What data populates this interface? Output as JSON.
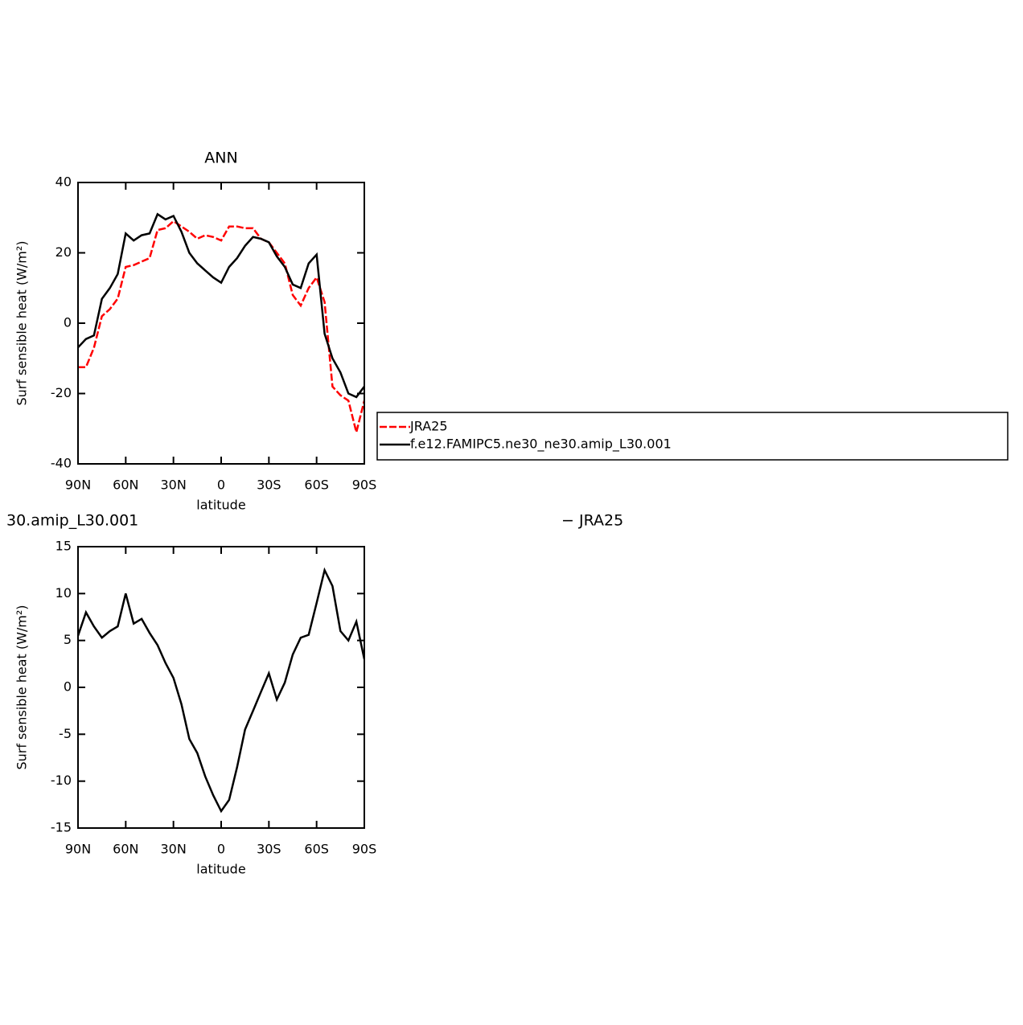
{
  "chart_data": [
    {
      "type": "line",
      "title": "ANN",
      "xlabel": "latitude",
      "ylabel": "Surf sensible heat (W/m²)",
      "x": [
        90,
        85,
        80,
        75,
        70,
        65,
        60,
        55,
        50,
        45,
        40,
        35,
        30,
        25,
        20,
        15,
        10,
        5,
        0,
        -5,
        -10,
        -15,
        -20,
        -25,
        -30,
        -35,
        -40,
        -45,
        -50,
        -55,
        -60,
        -65,
        -70,
        -75,
        -80,
        -85,
        -90
      ],
      "xlim": [
        90,
        -90
      ],
      "xticks": [
        {
          "value": 90,
          "label": "90N"
        },
        {
          "value": 60,
          "label": "60N"
        },
        {
          "value": 30,
          "label": "30N"
        },
        0,
        {
          "value": -30,
          "label": "30S"
        },
        {
          "value": -60,
          "label": "60S"
        },
        {
          "value": -90,
          "label": "90S"
        }
      ],
      "ylim": [
        -40,
        40
      ],
      "yticks": [
        -40,
        -20,
        0,
        20,
        40
      ],
      "legend": "right",
      "series": [
        {
          "name": "JRA25",
          "color": "#ff0000",
          "dashed": true,
          "values": [
            -12.5,
            -12.5,
            -7,
            2,
            4,
            7,
            16,
            16.5,
            17.5,
            18.5,
            26.5,
            27,
            29,
            27.5,
            26,
            24,
            25,
            24.5,
            23.5,
            27.5,
            27.5,
            27,
            27,
            24,
            23,
            20,
            17,
            8,
            5,
            10,
            13,
            6,
            -18,
            -20.5,
            -22,
            -31,
            -22
          ]
        },
        {
          "name": "f.e12.FAMIPC5.ne30_ne30.amip_L30.001",
          "color": "#000000",
          "dashed": false,
          "values": [
            -6.9,
            -4.5,
            -3.5,
            6.9,
            10,
            14,
            25.5,
            23.5,
            25,
            25.5,
            31,
            29.5,
            30.5,
            26,
            20,
            17,
            15,
            13,
            11.5,
            16,
            18.5,
            22,
            24.5,
            24,
            23,
            19,
            16,
            11,
            10,
            17,
            19.5,
            -3,
            -10,
            -14,
            -20,
            -21,
            -18
          ]
        }
      ]
    },
    {
      "type": "line",
      "title_left": "30.amip_L30.001",
      "title_right": "− JRA25",
      "xlabel": "latitude",
      "ylabel": "Surf sensible heat (W/m²)",
      "x": [
        90,
        85,
        80,
        75,
        70,
        65,
        60,
        55,
        50,
        45,
        40,
        35,
        30,
        25,
        20,
        15,
        10,
        5,
        0,
        -5,
        -10,
        -15,
        -20,
        -25,
        -30,
        -35,
        -40,
        -45,
        -50,
        -55,
        -60,
        -65,
        -70,
        -75,
        -80,
        -85,
        -90
      ],
      "xlim": [
        90,
        -90
      ],
      "xticks": [
        {
          "value": 90,
          "label": "90N"
        },
        {
          "value": 60,
          "label": "60N"
        },
        {
          "value": 30,
          "label": "30N"
        },
        0,
        {
          "value": -30,
          "label": "30S"
        },
        {
          "value": -60,
          "label": "60S"
        },
        {
          "value": -90,
          "label": "90S"
        }
      ],
      "ylim": [
        -15,
        15
      ],
      "yticks": [
        -15,
        -10,
        -5,
        0,
        5,
        10,
        15
      ],
      "series": [
        {
          "color": "#000000",
          "dashed": false,
          "values": [
            5.5,
            8,
            6.5,
            5.3,
            6,
            6.5,
            10,
            6.8,
            7.3,
            5.8,
            4.5,
            2.6,
            1,
            -1.8,
            -5.5,
            -7,
            -9.5,
            -11.5,
            -13.2,
            -12,
            -8.5,
            -4.5,
            -2.5,
            -0.5,
            1.5,
            -1.3,
            0.5,
            3.5,
            5.3,
            5.6,
            9,
            12.5,
            10.8,
            6,
            5,
            7,
            3
          ]
        }
      ]
    }
  ]
}
